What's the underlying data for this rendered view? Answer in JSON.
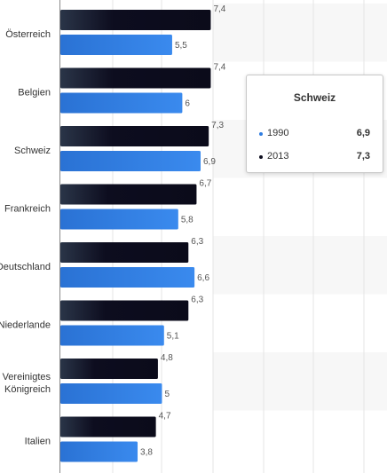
{
  "chart_data": {
    "type": "bar",
    "orientation": "horizontal",
    "categories": [
      "Österreich",
      "Belgien",
      "Schweiz",
      "Frankreich",
      "Deutschland",
      "Niederlande",
      "Vereinigtes Königreich",
      "Italien"
    ],
    "category_lines": [
      [
        "Österreich"
      ],
      [
        "Belgien"
      ],
      [
        "Schweiz"
      ],
      [
        "Frankreich"
      ],
      [
        "Deutschland"
      ],
      [
        "Niederlande"
      ],
      [
        "Vereinigtes",
        "Königreich"
      ],
      [
        "Italien"
      ]
    ],
    "series": [
      {
        "name": "2013",
        "color": "#0d0d1f",
        "values": [
          7.4,
          7.4,
          7.3,
          6.7,
          6.3,
          6.3,
          4.8,
          4.7
        ],
        "labels": [
          "7,4",
          "7,4",
          "7,3",
          "6,7",
          "6,3",
          "6,3",
          "4,8",
          "4,7"
        ]
      },
      {
        "name": "1990",
        "color": "#2f7de1",
        "values": [
          5.5,
          6.0,
          6.9,
          5.8,
          6.6,
          5.1,
          5.0,
          3.8
        ],
        "labels": [
          "5,5",
          "6",
          "6,9",
          "5,8",
          "6,6",
          "5,1",
          "5",
          "3,8"
        ]
      }
    ],
    "grid": true,
    "legend": "none"
  },
  "tooltip": {
    "title": "Schweiz",
    "rows": [
      {
        "name": "1990",
        "value": "6,9",
        "color": "#2f7de1"
      },
      {
        "name": "2013",
        "value": "7,3",
        "color": "#0d0d1f"
      }
    ]
  }
}
